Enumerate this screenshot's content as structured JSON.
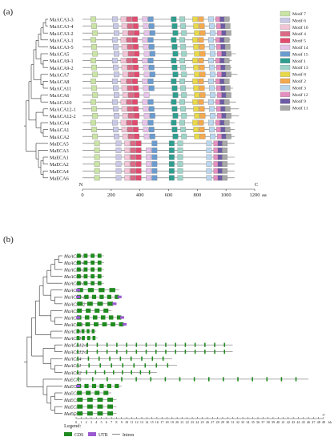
{
  "panels": {
    "a": {
      "label": "(a)",
      "genes": [
        "MaACA3-3",
        "MaACA3-4",
        "MaACA3-2",
        "MaACA3-1",
        "MaACA3-5",
        "MaACA5",
        "MaACA9-1",
        "MaACA9-2",
        "MaACA7",
        "MaACA8",
        "MaACA11",
        "MaACA6",
        "MaACA10",
        "MaACA12-1",
        "MaACA12-2",
        "MaACA4",
        "MaACA1",
        "MaACA2",
        "MaECA5",
        "MaECA3",
        "MaECA1",
        "MaECA2",
        "MaECA4",
        "MaECA6"
      ],
      "lengths": [
        1030,
        1030,
        1030,
        1030,
        1030,
        1070,
        1040,
        1040,
        1080,
        1010,
        1050,
        1010,
        1070,
        1090,
        1090,
        1060,
        1060,
        1060,
        1060,
        1000,
        1060,
        1060,
        1060,
        1060
      ],
      "axis_ticks": [
        "0",
        "200",
        "400",
        "600",
        "800",
        "1000",
        "1200"
      ],
      "axis_unit": "aa",
      "n_label": "N",
      "c_label": "C",
      "motifs": [
        {
          "name": "Motif 7",
          "color": "#c9e4a5",
          "pos": 80
        },
        {
          "name": "Motif 6",
          "color": "#c8c8e6",
          "pos": 230
        },
        {
          "name": "Motif 10",
          "color": "#f2c4d6",
          "pos": 290
        },
        {
          "name": "Motif 4",
          "color": "#d96b86",
          "pos": 330
        },
        {
          "name": "Motif 5",
          "color": "#e34a6f",
          "pos": 370
        },
        {
          "name": "Motif 14",
          "color": "#e6c3e8",
          "pos": 440
        },
        {
          "name": "Motif 15",
          "color": "#6a9ccf",
          "pos": 480
        },
        {
          "name": "Motif 1",
          "color": "#2e9e8f",
          "pos": 640
        },
        {
          "name": "Motif 13",
          "color": "#9ed4c8",
          "pos": 700
        },
        {
          "name": "Motif 8",
          "color": "#e8d84a",
          "pos": 790
        },
        {
          "name": "Motif 2",
          "color": "#f4a94e",
          "pos": 830
        },
        {
          "name": "Motif 3",
          "color": "#b9d6ee",
          "pos": 900
        },
        {
          "name": "Motif 12",
          "color": "#e58fc0",
          "pos": 950
        },
        {
          "name": "Motif 9",
          "color": "#6d5ba5",
          "pos": 980
        },
        {
          "name": "Motif 11",
          "color": "#a8a8a8",
          "pos": 1010
        }
      ]
    },
    "b": {
      "label": "(b)",
      "genes": [
        "MaACA3-3",
        "MaACA3-4",
        "MaACA3-2",
        "MaACA3-1",
        "MaACA3-5",
        "MaACA5",
        "MaACA9-1",
        "MaACA9-2",
        "MaACA7",
        "MaACA8",
        "MaACA11",
        "MaACA6",
        "MaACA10",
        "MaACA12-1",
        "MaACA12-2",
        "MaACA4",
        "MaACA1",
        "MaACA2",
        "MaECA5",
        "MaECA3",
        "MaECA1",
        "MaECA2",
        "MaECA4",
        "MaECA6"
      ],
      "gene_spans_kb": [
        5.5,
        5.5,
        5.5,
        5.5,
        5.5,
        8.5,
        9.0,
        8.0,
        7.0,
        9.5,
        10.0,
        4.0,
        4.2,
        31.0,
        31.0,
        19.0,
        20.0,
        16.0,
        46.0,
        9.0,
        7.0,
        8.0,
        8.0,
        8.0
      ],
      "axis_ticks": [
        "0",
        "1",
        "2",
        "3",
        "4",
        "5",
        "6",
        "7",
        "8",
        "9",
        "10",
        "11",
        "12",
        "13",
        "14",
        "15",
        "16",
        "17",
        "18",
        "19",
        "20",
        "21",
        "22",
        "23",
        "24",
        "25",
        "26",
        "27",
        "28",
        "29",
        "30",
        "31",
        "32",
        "33",
        "34",
        "35",
        "36",
        "37",
        "38",
        "39",
        "40",
        "41",
        "42",
        "43",
        "44",
        "45",
        "46",
        "47",
        "48",
        "49"
      ],
      "axis_unit": "kb",
      "axis_start": "5'",
      "axis_end": "3'",
      "legend_title": "Legend:",
      "legend": [
        {
          "name": "CDS",
          "color": "#1f8a1f"
        },
        {
          "name": "UTR",
          "color": "#9b59d0"
        },
        {
          "name": "Intron",
          "color": "#555555"
        }
      ]
    }
  }
}
